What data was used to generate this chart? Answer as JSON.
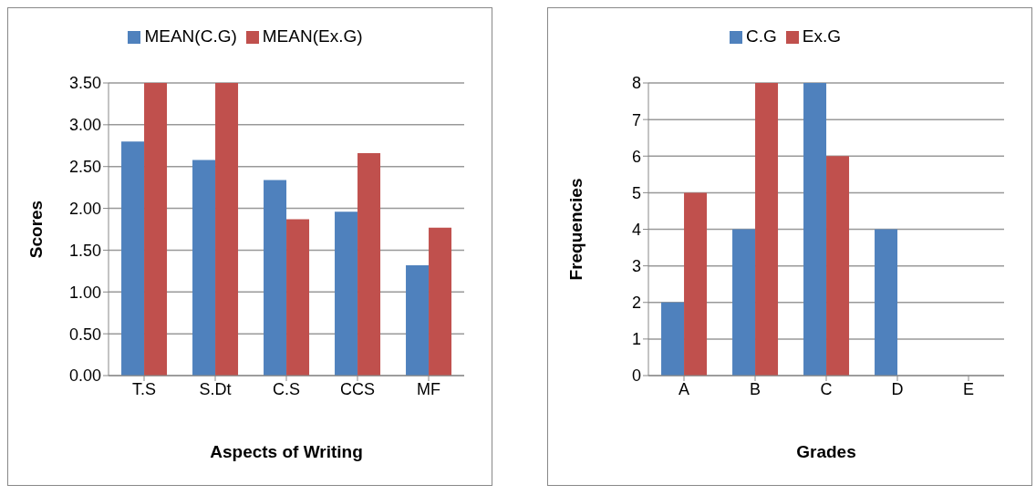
{
  "chart_data": [
    {
      "type": "bar",
      "xlabel": "Aspects of Writing",
      "ylabel": "Scores",
      "categories": [
        "T.S",
        "S.Dt",
        "C.S",
        "CCS",
        "MF"
      ],
      "series": [
        {
          "name": "MEAN(C.G)",
          "color": "#4f81bd",
          "values": [
            2.8,
            2.58,
            2.34,
            1.96,
            1.32
          ]
        },
        {
          "name": "MEAN(Ex.G)",
          "color": "#c0504d",
          "values": [
            3.5,
            3.5,
            1.87,
            2.66,
            1.77
          ]
        }
      ],
      "ylim": [
        0,
        3.5
      ],
      "yticks": [
        {
          "value": 0,
          "label": "0.00"
        },
        {
          "value": 0.5,
          "label": "0.50"
        },
        {
          "value": 1,
          "label": "1.00"
        },
        {
          "value": 1.5,
          "label": "1.50"
        },
        {
          "value": 2,
          "label": "2.00"
        },
        {
          "value": 2.5,
          "label": "2.50"
        },
        {
          "value": 3,
          "label": "3.00"
        },
        {
          "value": 3.5,
          "label": "3.50"
        }
      ],
      "grid": "y",
      "legend": "top"
    },
    {
      "type": "bar",
      "xlabel": "Grades",
      "ylabel": "Frequencies",
      "categories": [
        "A",
        "B",
        "C",
        "D",
        "E"
      ],
      "series": [
        {
          "name": "C.G",
          "color": "#4f81bd",
          "values": [
            2,
            4,
            8,
            4,
            0
          ]
        },
        {
          "name": "Ex.G",
          "color": "#c0504d",
          "values": [
            5,
            8,
            6,
            0,
            0
          ]
        }
      ],
      "ylim": [
        0,
        8
      ],
      "yticks": [
        0,
        1,
        2,
        3,
        4,
        5,
        6,
        7,
        8
      ],
      "grid": "y",
      "legend": "top"
    }
  ]
}
